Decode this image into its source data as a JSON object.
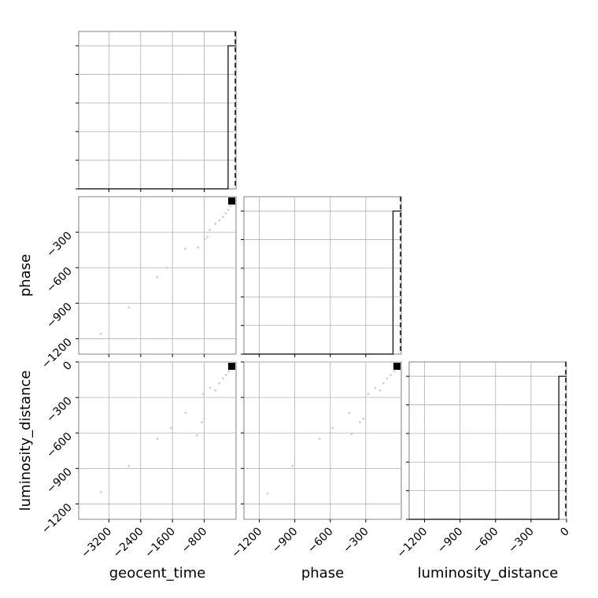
{
  "chart_data": {
    "type": "corner",
    "parameters": [
      "geocent_time",
      "phase",
      "luminosity_distance"
    ],
    "axis_labels": {
      "geocent_time": "geocent_time",
      "phase": "phase",
      "luminosity_distance": "luminosity_distance"
    },
    "ranges": {
      "geocent_time": [
        -3960,
        0
      ],
      "phase": [
        -1330,
        0
      ],
      "luminosity_distance": [
        -1330,
        0
      ]
    },
    "ticks": {
      "geocent_time": [
        -3200,
        -2400,
        -1600,
        -800
      ],
      "phase": [
        -1200,
        -900,
        -600,
        -300
      ],
      "luminosity_distance": [
        -1200,
        -900,
        -600,
        -300,
        0
      ]
    },
    "row_ticks": {
      "phase": [
        -300,
        -600,
        -900,
        -1200
      ],
      "luminosity_distance": [
        0,
        -300,
        -600,
        -900,
        -1200
      ]
    },
    "tick_labels": {
      "geocent_time": [
        "−3200",
        "−2400",
        "−1600",
        "−800"
      ],
      "phase": [
        "−1200",
        "−900",
        "−600",
        "−300"
      ],
      "luminosity_distance": [
        "−1200",
        "−900",
        "−600",
        "−300",
        "0"
      ]
    },
    "row_tick_labels": {
      "phase": [
        "−300",
        "−600",
        "−900",
        "−1200"
      ],
      "luminosity_distance": [
        "0",
        "−300",
        "−600",
        "−900",
        "−1200"
      ]
    },
    "truths": {
      "geocent_time": 0,
      "phase": 0,
      "luminosity_distance": 0
    },
    "histograms": [
      {
        "parameter": "geocent_time",
        "edges": [
          -3960,
          -200,
          0
        ],
        "counts": [
          0,
          1
        ]
      },
      {
        "parameter": "phase",
        "edges": [
          -1330,
          -70,
          0
        ],
        "counts": [
          0,
          1
        ]
      },
      {
        "parameter": "luminosity_distance",
        "edges": [
          -1330,
          -65,
          0
        ],
        "counts": [
          0,
          1
        ]
      }
    ],
    "scatter": [
      {
        "x": "geocent_time",
        "y": "phase",
        "points": [
          [
            -3400,
            -1160
          ],
          [
            -2700,
            -935
          ],
          [
            -1980,
            -680
          ],
          [
            -1750,
            -600
          ],
          [
            -1280,
            -440
          ],
          [
            -960,
            -430
          ],
          [
            -780,
            -355
          ],
          [
            -720,
            -340
          ],
          [
            -660,
            -280
          ],
          [
            -520,
            -230
          ],
          [
            -420,
            -200
          ],
          [
            -330,
            -170
          ],
          [
            -260,
            -140
          ],
          [
            -200,
            -110
          ],
          [
            -140,
            -80
          ],
          [
            -90,
            -55
          ]
        ]
      },
      {
        "x": "geocent_time",
        "y": "luminosity_distance",
        "points": [
          [
            -3400,
            -1100
          ],
          [
            -2700,
            -880
          ],
          [
            -1980,
            -650
          ],
          [
            -1640,
            -560
          ],
          [
            -1270,
            -430
          ],
          [
            -980,
            -620
          ],
          [
            -860,
            -510
          ],
          [
            -800,
            -480
          ],
          [
            -830,
            -270
          ],
          [
            -650,
            -220
          ],
          [
            -520,
            -240
          ],
          [
            -420,
            -180
          ],
          [
            -330,
            -140
          ],
          [
            -250,
            -110
          ],
          [
            -180,
            -80
          ],
          [
            -120,
            -50
          ]
        ]
      },
      {
        "x": "phase",
        "y": "luminosity_distance",
        "points": [
          [
            -1130,
            -1110
          ],
          [
            -920,
            -880
          ],
          [
            -690,
            -650
          ],
          [
            -580,
            -560
          ],
          [
            -440,
            -430
          ],
          [
            -420,
            -610
          ],
          [
            -350,
            -510
          ],
          [
            -320,
            -480
          ],
          [
            -280,
            -270
          ],
          [
            -220,
            -220
          ],
          [
            -180,
            -240
          ],
          [
            -150,
            -180
          ],
          [
            -120,
            -140
          ],
          [
            -90,
            -110
          ],
          [
            -60,
            -80
          ],
          [
            -40,
            -50
          ]
        ]
      }
    ],
    "title": "",
    "grid": true
  }
}
